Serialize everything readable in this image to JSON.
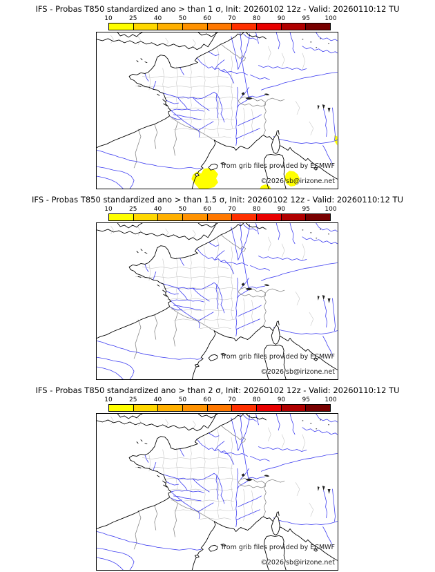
{
  "page": {
    "background": "#ffffff"
  },
  "colorbar": {
    "ticks": [
      "10",
      "25",
      "40",
      "50",
      "60",
      "70",
      "80",
      "90",
      "95",
      "100"
    ],
    "colors": [
      "#ffff00",
      "#ffd800",
      "#ffb000",
      "#ff9200",
      "#ff7800",
      "#ff3000",
      "#e80000",
      "#b00000",
      "#780000"
    ]
  },
  "map": {
    "coast_color": "#000000",
    "country_border_color": "#888888",
    "department_border_color": "#c6c6c6",
    "river_color": "#3c3cf0",
    "lake_color": "#222222",
    "highlight_color": "#ffff00",
    "attribution1": "from grib files provided by ECMWF",
    "attribution2": "©2026 sb@irizone.net"
  },
  "panels": [
    {
      "title": "IFS - Probas T850  standardized ano > than 1 σ, Init: 20260102 12z - Valid: 20260110:12 TU",
      "threshold_sigma": "1",
      "init": "20260102 12z",
      "valid": "20260110:12 TU",
      "has_patches": true
    },
    {
      "title": "IFS - Probas T850  standardized ano > than 1.5 σ, Init: 20260102 12z - Valid: 20260110:12 TU",
      "threshold_sigma": "1.5",
      "init": "20260102 12z",
      "valid": "20260110:12 TU",
      "has_patches": false
    },
    {
      "title": "IFS - Probas T850  standardized ano > than 2 σ, Init: 20260102 12z - Valid: 20260110:12 TU",
      "threshold_sigma": "2",
      "init": "20260102 12z",
      "valid": "20260110:12 TU",
      "has_patches": false
    }
  ],
  "chart_data": {
    "type": "heatmap",
    "title": "IFS ensemble probability maps, T850 standardized anomaly thresholds",
    "panels": [
      {
        "threshold": "anomaly > 1 sigma",
        "regions_with_probability": [
          {
            "area": "south of Balearic Islands / Mallorca",
            "probability_percent": "10-25"
          },
          {
            "area": "sea west-northwest of Sardinia",
            "probability_percent": "10-25"
          },
          {
            "area": "Italian coast at right map edge",
            "probability_percent": "10-25"
          }
        ]
      },
      {
        "threshold": "anomaly > 1.5 sigma",
        "regions_with_probability": []
      },
      {
        "threshold": "anomaly > 2 sigma",
        "regions_with_probability": []
      }
    ],
    "legend_scale_percent": [
      10,
      25,
      40,
      50,
      60,
      70,
      80,
      90,
      95,
      100
    ],
    "legend_position": "top-center of each panel",
    "grid": false
  }
}
